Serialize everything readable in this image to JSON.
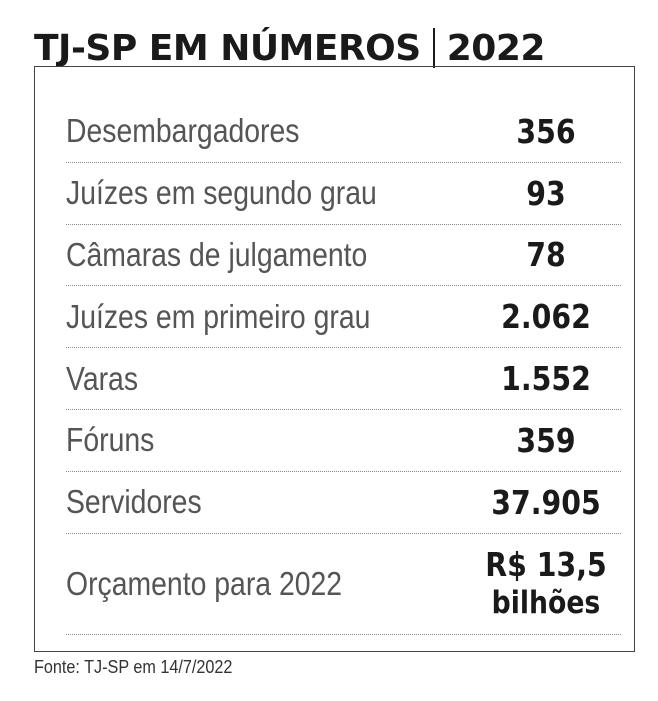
{
  "header": {
    "title_main": "TJ-SP EM NÚMEROS",
    "title_year": "2022"
  },
  "rows": [
    {
      "label": "Desembargadores",
      "value": "356"
    },
    {
      "label": "Juízes em segundo grau",
      "value": "93"
    },
    {
      "label": "Câmaras de julgamento",
      "value": "78"
    },
    {
      "label": "Juízes em primeiro grau",
      "value": "2.062"
    },
    {
      "label": "Varas",
      "value": "1.552"
    },
    {
      "label": "Fóruns",
      "value": "359"
    },
    {
      "label": "Servidores",
      "value": "37.905"
    },
    {
      "label": "Orçamento para 2022",
      "value": "R$ 13,5",
      "value_line2": "bilhões"
    }
  ],
  "footer": {
    "source": "Fonte: TJ-SP em 14/7/2022"
  }
}
